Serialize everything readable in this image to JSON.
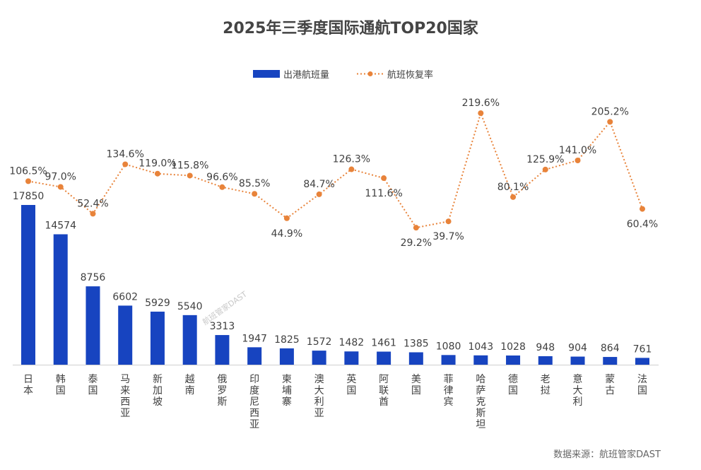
{
  "chart_data": {
    "type": "bar+line",
    "title": "2025年三季度国际通航TOP20国家",
    "categories": [
      "日本",
      "韩国",
      "泰国",
      "马来西亚",
      "新加坡",
      "越南",
      "俄罗斯",
      "印度尼西亚",
      "柬埔寨",
      "澳大利亚",
      "英国",
      "阿联酋",
      "美国",
      "菲律宾",
      "哈萨克斯坦",
      "德国",
      "老挝",
      "意大利",
      "蒙古",
      "法国"
    ],
    "series": [
      {
        "name": "出港航班量",
        "type": "bar",
        "color": "#1744c0",
        "values": [
          17850,
          14574,
          8756,
          6602,
          5929,
          5540,
          3313,
          1947,
          1825,
          1572,
          1482,
          1461,
          1385,
          1080,
          1043,
          1028,
          948,
          904,
          864,
          761
        ]
      },
      {
        "name": "航班恢复率",
        "type": "line",
        "style": "dotted",
        "color": "#e8833a",
        "unit": "%",
        "values": [
          106.5,
          97.0,
          52.4,
          134.6,
          119.0,
          115.8,
          96.6,
          85.5,
          44.9,
          84.7,
          126.3,
          111.6,
          29.2,
          39.7,
          219.6,
          80.1,
          125.9,
          141.0,
          205.2,
          60.4
        ]
      }
    ],
    "legend_position": "top",
    "grid": false,
    "axes_visible": false
  },
  "source": "数据来源：航班管家DAST",
  "watermark": "航班管家DAST"
}
